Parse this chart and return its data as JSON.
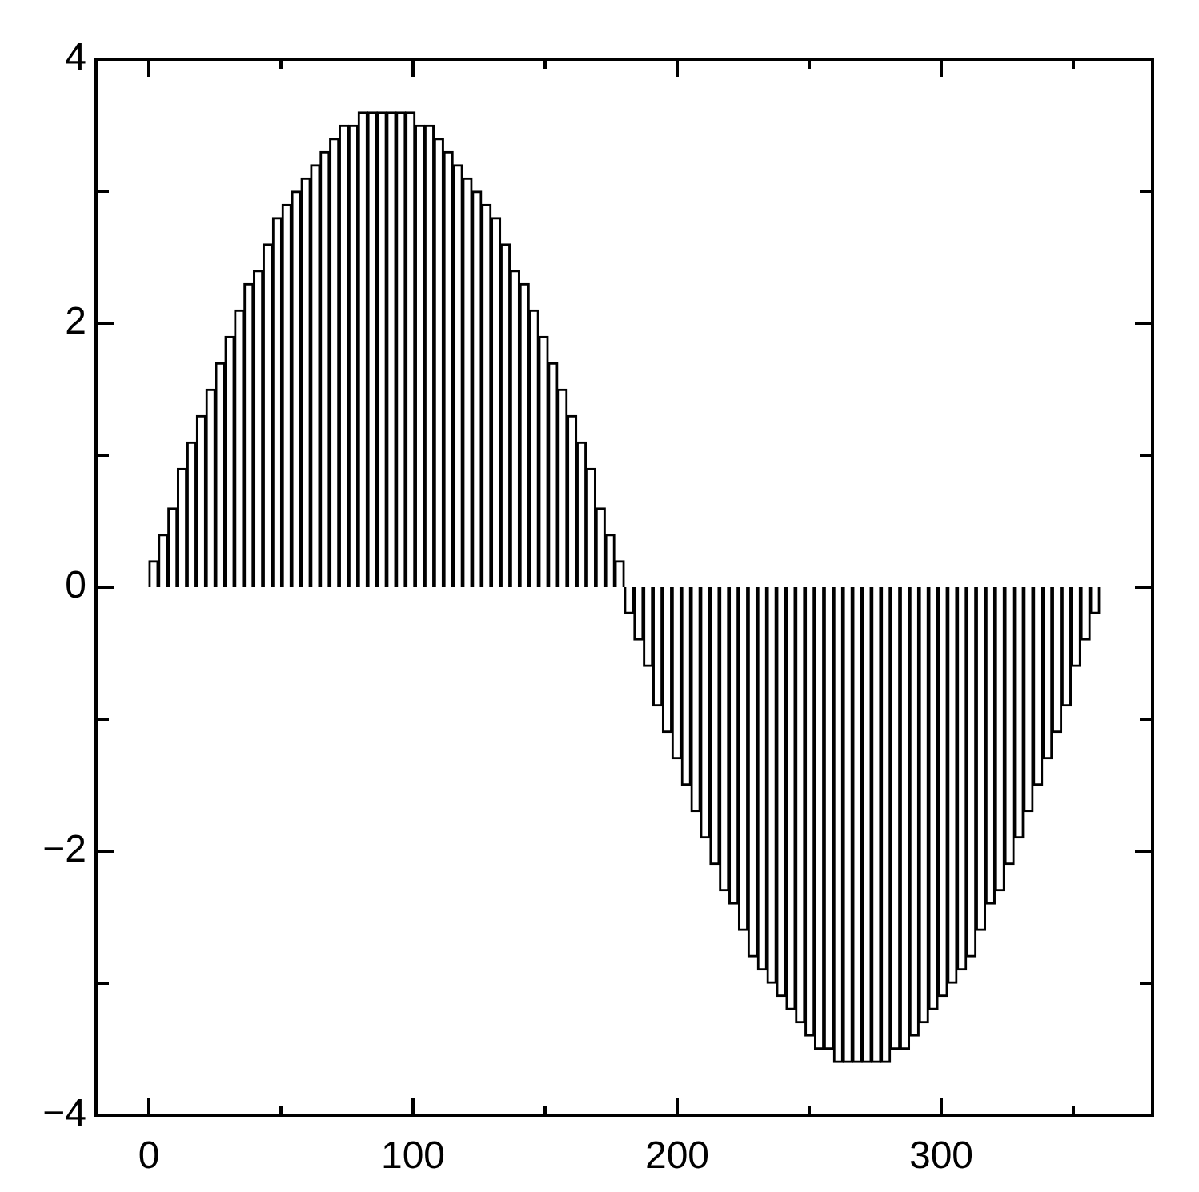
{
  "chart_data": {
    "type": "bar",
    "x": [
      1.8,
      5.4,
      9,
      12.6,
      16.2,
      19.8,
      23.4,
      27,
      30.6,
      34.2,
      37.8,
      41.4,
      45,
      48.6,
      52.2,
      55.8,
      59.4,
      63,
      66.6,
      70.2,
      73.8,
      77.4,
      81,
      84.6,
      88.2,
      91.8,
      95.4,
      99,
      102.6,
      106.2,
      109.8,
      113.4,
      117,
      120.6,
      124.2,
      127.8,
      131.4,
      135,
      138.6,
      142.2,
      145.8,
      149.4,
      153,
      156.6,
      160.2,
      163.8,
      167.4,
      171,
      174.6,
      178.2,
      181.8,
      185.4,
      189,
      192.6,
      196.2,
      199.8,
      203.4,
      207,
      210.6,
      214.2,
      217.8,
      221.4,
      225,
      228.6,
      232.2,
      235.8,
      239.4,
      243,
      246.6,
      250.2,
      253.8,
      257.4,
      261,
      264.6,
      268.2,
      271.8,
      275.4,
      279,
      282.6,
      286.2,
      289.8,
      293.4,
      297,
      300.6,
      304.2,
      307.8,
      311.4,
      315,
      318.6,
      322.2,
      325.8,
      329.4,
      333,
      336.6,
      340.2,
      343.8,
      347.4,
      351,
      354.6,
      358.2
    ],
    "values": [
      0.2,
      0.4,
      0.6,
      0.9,
      1.1,
      1.3,
      1.5,
      1.7,
      1.9,
      2.1,
      2.3,
      2.4,
      2.6,
      2.8,
      2.9,
      3.0,
      3.1,
      3.2,
      3.3,
      3.4,
      3.5,
      3.5,
      3.6,
      3.6,
      3.6,
      3.6,
      3.6,
      3.6,
      3.5,
      3.5,
      3.4,
      3.3,
      3.2,
      3.1,
      3.0,
      2.9,
      2.8,
      2.6,
      2.4,
      2.3,
      2.1,
      1.9,
      1.7,
      1.5,
      1.3,
      1.1,
      0.9,
      0.6,
      0.4,
      0.2,
      -0.2,
      -0.4,
      -0.6,
      -0.9,
      -1.1,
      -1.3,
      -1.5,
      -1.7,
      -1.9,
      -2.1,
      -2.3,
      -2.4,
      -2.6,
      -2.8,
      -2.9,
      -3.0,
      -3.1,
      -3.2,
      -3.3,
      -3.4,
      -3.5,
      -3.5,
      -3.6,
      -3.6,
      -3.6,
      -3.6,
      -3.6,
      -3.6,
      -3.5,
      -3.5,
      -3.4,
      -3.3,
      -3.2,
      -3.1,
      -3.0,
      -2.9,
      -2.8,
      -2.6,
      -2.4,
      -2.3,
      -2.1,
      -1.9,
      -1.7,
      -1.5,
      -1.3,
      -1.1,
      -0.9,
      -0.6,
      -0.4,
      -0.2
    ],
    "color": "#ffffff",
    "xlim": [
      -20,
      380
    ],
    "xticks": [
      0,
      {
        "value": 50,
        "label": null
      },
      100,
      {
        "value": 150,
        "label": null
      },
      200,
      {
        "value": 250,
        "label": null
      },
      300,
      {
        "value": 350,
        "label": null
      }
    ],
    "ylim": [
      -4,
      4
    ],
    "yticks": [
      -4,
      {
        "value": -3,
        "label": null
      },
      -2,
      {
        "value": -1,
        "label": null
      },
      0,
      {
        "value": 1,
        "label": null
      },
      2,
      {
        "value": 3,
        "label": null
      },
      4
    ]
  }
}
